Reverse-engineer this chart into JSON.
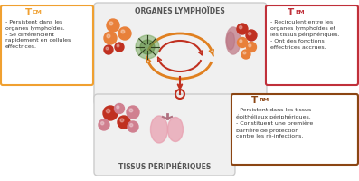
{
  "title_lymphoid": "ORGANES LYMPHOÏDES",
  "title_peripheral": "TISSUS PÉRIPHÉRIQUES",
  "tcm_title": "T",
  "tcm_sub": "CM",
  "tcm_text": "- Persistent dans les\norganes lymphoïdes.\n- Se différencient\nrapidement en cellules\neffectrices.",
  "tem_title": "T",
  "tem_sub": "EM",
  "tem_text": "- Recirculent entre les\norganes lymphoïdes et\nles tissus périphériques.\n- Ont des fonctions\neffectrices accrues.",
  "trm_title": "T",
  "trm_sub": "RM",
  "trm_text": "- Persistent dans les tissus\népithéliaux périphériques.\n- Constituent une première\nbarrière de protection\ncontre les ré-infections.",
  "tcm_box_border": "#f0a030",
  "tem_box_border": "#c0303a",
  "trm_box_border": "#8b4513",
  "tcm_title_color": "#f0a030",
  "tem_title_color": "#c0303a",
  "trm_title_color": "#8b4513",
  "arrow_outer_color": "#e08020",
  "arrow_inner_color": "#c03020",
  "cell_orange": "#e8803a",
  "cell_red": "#c03020",
  "cell_pink": "#d08090"
}
